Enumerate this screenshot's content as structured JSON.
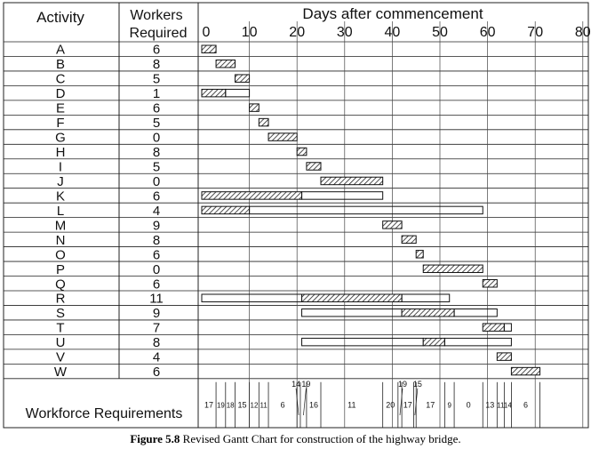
{
  "chart_data": {
    "type": "gantt",
    "headers": {
      "activity": "Activity",
      "workers_line1": "Workers",
      "workers_line2": "Required",
      "days": "Days after commencement"
    },
    "x_ticks": [
      0,
      10,
      20,
      30,
      40,
      50,
      60,
      70,
      80
    ],
    "xlim": [
      0,
      80
    ],
    "activities": [
      {
        "name": "A",
        "workers": "6",
        "bars": [
          {
            "kind": "work",
            "start": 0,
            "end": 3
          }
        ]
      },
      {
        "name": "B",
        "workers": "8",
        "bars": [
          {
            "kind": "work",
            "start": 3,
            "end": 7
          }
        ]
      },
      {
        "name": "C",
        "workers": "5",
        "bars": [
          {
            "kind": "work",
            "start": 7,
            "end": 10
          }
        ]
      },
      {
        "name": "D",
        "workers": "1",
        "bars": [
          {
            "kind": "work",
            "start": 0,
            "end": 5
          },
          {
            "kind": "float",
            "start": 5,
            "end": 10
          }
        ]
      },
      {
        "name": "E",
        "workers": "6",
        "bars": [
          {
            "kind": "work",
            "start": 10,
            "end": 12
          }
        ]
      },
      {
        "name": "F",
        "workers": "5",
        "bars": [
          {
            "kind": "work",
            "start": 12,
            "end": 14
          }
        ]
      },
      {
        "name": "G",
        "workers": "0",
        "bars": [
          {
            "kind": "work",
            "start": 14,
            "end": 20
          }
        ]
      },
      {
        "name": "H",
        "workers": "8",
        "bars": [
          {
            "kind": "work",
            "start": 20,
            "end": 22
          }
        ]
      },
      {
        "name": "I",
        "workers": "5",
        "bars": [
          {
            "kind": "work",
            "start": 22,
            "end": 25
          }
        ]
      },
      {
        "name": "J",
        "workers": "0",
        "bars": [
          {
            "kind": "work",
            "start": 25,
            "end": 38
          }
        ]
      },
      {
        "name": "K",
        "workers": "6",
        "bars": [
          {
            "kind": "work",
            "start": 0,
            "end": 21
          },
          {
            "kind": "float",
            "start": 21,
            "end": 38
          }
        ]
      },
      {
        "name": "L",
        "workers": "4",
        "bars": [
          {
            "kind": "work",
            "start": 0,
            "end": 10
          },
          {
            "kind": "float",
            "start": 10,
            "end": 59
          }
        ]
      },
      {
        "name": "M",
        "workers": "9",
        "bars": [
          {
            "kind": "work",
            "start": 38,
            "end": 42
          }
        ]
      },
      {
        "name": "N",
        "workers": "8",
        "bars": [
          {
            "kind": "work",
            "start": 42,
            "end": 45
          }
        ]
      },
      {
        "name": "O",
        "workers": "6",
        "bars": [
          {
            "kind": "work",
            "start": 45,
            "end": 46.5
          }
        ]
      },
      {
        "name": "P",
        "workers": "0",
        "bars": [
          {
            "kind": "work",
            "start": 46.5,
            "end": 59
          }
        ]
      },
      {
        "name": "Q",
        "workers": "6",
        "bars": [
          {
            "kind": "work",
            "start": 59,
            "end": 62
          }
        ]
      },
      {
        "name": "R",
        "workers": "11",
        "bars": [
          {
            "kind": "float",
            "start": 0,
            "end": 21
          },
          {
            "kind": "work",
            "start": 21,
            "end": 42
          },
          {
            "kind": "float",
            "start": 42,
            "end": 52
          }
        ]
      },
      {
        "name": "S",
        "workers": "9",
        "bars": [
          {
            "kind": "float",
            "start": 21,
            "end": 42
          },
          {
            "kind": "work",
            "start": 42,
            "end": 53
          },
          {
            "kind": "float",
            "start": 53,
            "end": 62
          }
        ]
      },
      {
        "name": "T",
        "workers": "7",
        "bars": [
          {
            "kind": "work",
            "start": 59,
            "end": 63.5
          },
          {
            "kind": "float",
            "start": 63.5,
            "end": 65
          }
        ]
      },
      {
        "name": "U",
        "workers": "8",
        "bars": [
          {
            "kind": "float",
            "start": 21,
            "end": 46.5
          },
          {
            "kind": "work",
            "start": 46.5,
            "end": 51
          },
          {
            "kind": "float",
            "start": 51,
            "end": 65
          }
        ]
      },
      {
        "name": "V",
        "workers": "4",
        "bars": [
          {
            "kind": "work",
            "start": 62,
            "end": 65
          }
        ]
      },
      {
        "name": "W",
        "workers": "6",
        "bars": [
          {
            "kind": "work",
            "start": 65,
            "end": 71
          }
        ]
      }
    ],
    "workforce": {
      "label": "Workforce Requirements",
      "segments": [
        {
          "start": 0,
          "end": 3,
          "value": "17"
        },
        {
          "start": 3,
          "end": 5,
          "value": "19"
        },
        {
          "start": 5,
          "end": 7,
          "value": "18"
        },
        {
          "start": 7,
          "end": 10,
          "value": "15"
        },
        {
          "start": 10,
          "end": 12,
          "value": "12"
        },
        {
          "start": 12,
          "end": 14,
          "value": "11"
        },
        {
          "start": 14,
          "end": 20,
          "value": "6"
        },
        {
          "start": 20,
          "end": 20.7,
          "value": "14"
        },
        {
          "start": 20.7,
          "end": 22,
          "value": "19"
        },
        {
          "start": 22,
          "end": 25,
          "value": "16"
        },
        {
          "start": 25,
          "end": 38,
          "value": "11"
        },
        {
          "start": 38,
          "end": 41.2,
          "value": "20"
        },
        {
          "start": 41.2,
          "end": 42,
          "value": "19"
        },
        {
          "start": 42,
          "end": 44.5,
          "value": "17"
        },
        {
          "start": 44.5,
          "end": 45,
          "value": "15"
        },
        {
          "start": 45,
          "end": 51,
          "value": "17"
        },
        {
          "start": 51,
          "end": 53,
          "value": "9"
        },
        {
          "start": 53,
          "end": 59,
          "value": "0"
        },
        {
          "start": 59,
          "end": 62,
          "value": "13"
        },
        {
          "start": 62,
          "end": 63.5,
          "value": "11"
        },
        {
          "start": 63.5,
          "end": 65,
          "value": "14"
        },
        {
          "start": 65,
          "end": 71,
          "value": "6"
        }
      ]
    }
  },
  "caption": {
    "label": "Figure 5.8",
    "text": " Revised Gantt Chart for construction of the highway bridge."
  }
}
